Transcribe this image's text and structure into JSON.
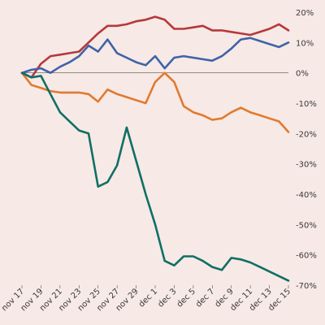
{
  "chart_data": {
    "type": "line",
    "title": "",
    "xlabel": "",
    "ylabel": "",
    "ylim": [
      -70,
      20
    ],
    "y_ticks": [
      20,
      10,
      0,
      -10,
      -20,
      -30,
      -40,
      -50,
      -60,
      -70
    ],
    "y_tick_labels": [
      "20%",
      "10%",
      "0%",
      "-10%",
      "-20%",
      "-30%",
      "-40%",
      "-50%",
      "-60%",
      "-70%"
    ],
    "y_axis_position": "right",
    "grid": false,
    "legend": "none",
    "x": [
      "nov 17",
      "nov 18",
      "nov 19",
      "nov 20",
      "nov 21",
      "nov 22",
      "nov 23",
      "nov 24",
      "nov 25",
      "nov 26",
      "nov 27",
      "nov 28",
      "nov 29",
      "nov 30",
      "dec 1",
      "dec 2",
      "dec 3",
      "dec 4",
      "dec 5",
      "dec 6",
      "dec 7",
      "dec 8",
      "dec 9",
      "dec 10",
      "dec 11",
      "dec 12",
      "dec 13",
      "dec 14",
      "dec 15"
    ],
    "x_tick_labels": [
      "nov 17",
      "nov 19",
      "nov 21",
      "nov 23",
      "nov 25",
      "nov 27",
      "nov 29",
      "dec 1",
      "dec 3",
      "dec 5",
      "dec 7",
      "dec 9",
      "dec 11",
      "dec 13",
      "dec 15"
    ],
    "series": [
      {
        "color": "#b5393b",
        "values": [
          0,
          -1.5,
          3,
          5.5,
          6,
          6.5,
          7,
          10,
          13,
          15.5,
          15.5,
          16,
          17,
          17.5,
          18.5,
          17.5,
          14.5,
          14.5,
          15,
          15.5,
          14,
          14,
          13.5,
          13,
          12.5,
          13.5,
          14.5,
          16,
          14
        ]
      },
      {
        "color": "#3f63a8",
        "values": [
          0,
          1,
          1.5,
          0,
          2,
          3.5,
          5.5,
          9,
          7,
          11,
          6.5,
          5,
          3.5,
          2.5,
          5.5,
          1.5,
          5,
          5.5,
          5,
          4.5,
          4,
          5.5,
          8,
          11,
          11.5,
          10.5,
          9.5,
          8.5,
          10
        ]
      },
      {
        "color": "#e07a30",
        "values": [
          0,
          -4,
          -5,
          -6,
          -6.5,
          -6.5,
          -6.5,
          -7,
          -9.5,
          -5.5,
          -7,
          -8,
          -9,
          -10,
          -3,
          0,
          -3,
          -11,
          -13,
          -14,
          -15.5,
          -15,
          -13,
          -11.5,
          -13,
          -14,
          -15,
          -16,
          -19.5
        ]
      },
      {
        "color": "#0f6f66",
        "values": [
          0,
          -1.5,
          -1,
          -7,
          -13,
          -16,
          -19,
          -20,
          -37.5,
          -36,
          -30.5,
          -18,
          -29,
          -40,
          -50,
          -62,
          -63.5,
          -60.5,
          -60.5,
          -62,
          -64,
          -65,
          -61,
          -61.5,
          -62.5,
          -64,
          -65.5,
          -67,
          -68.5
        ]
      }
    ]
  }
}
